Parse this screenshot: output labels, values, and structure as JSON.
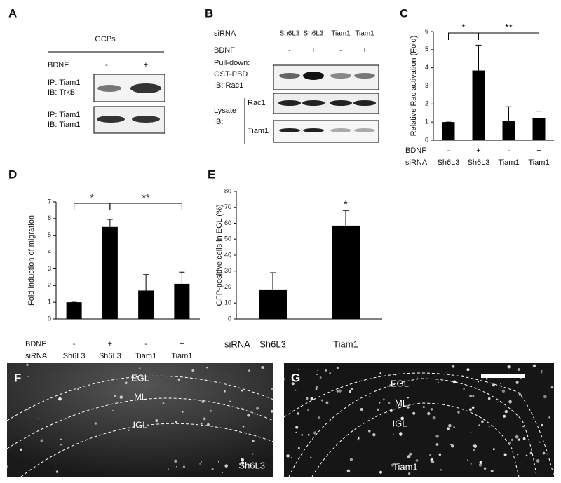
{
  "panel_letters": [
    "A",
    "B",
    "C",
    "D",
    "E",
    "F",
    "G"
  ],
  "panel_a": {
    "title": "GCPs",
    "row_label": "BDNF",
    "conditions": [
      "-",
      "+"
    ],
    "blots": [
      [
        "IP: Tiam1",
        "IB: TrkB"
      ],
      [
        "IP: Tiam1",
        "IB: Tiam1"
      ]
    ]
  },
  "panel_b": {
    "sirna_label": "siRNA",
    "sirna": [
      "Sh6L3",
      "Sh6L3",
      "Tiam1",
      "Tiam1"
    ],
    "bdnf_label": "BDNF",
    "bdnf": [
      "-",
      "+",
      "-",
      "+"
    ],
    "pulldown_label": [
      "Pull-down:",
      "GST-PBD",
      "IB: Rac1"
    ],
    "lysate_label": [
      "Lysate",
      "IB:"
    ],
    "lysate_blots": [
      "Rac1",
      "Tiam1"
    ]
  },
  "chart_data": [
    {
      "type": "bar",
      "y_label": "Relative Rac activation (Fold)",
      "category_rows": [
        {
          "name": "BDNF",
          "labels": [
            "-",
            "+",
            "-",
            "+"
          ]
        },
        {
          "name": "siRNA",
          "labels": [
            "Sh6L3",
            "Sh6L3",
            "Tiam1",
            "Tiam1"
          ]
        }
      ],
      "values": [
        1,
        3.85,
        1.05,
        1.2
      ],
      "errors": [
        0,
        1.4,
        0.8,
        0.4
      ],
      "color": "#000000",
      "ylim": [
        0,
        6
      ],
      "yticks": [
        0,
        1,
        2,
        3,
        4,
        5,
        6
      ],
      "significance": [
        {
          "from": 0,
          "to": 1,
          "label": "*"
        },
        {
          "from": 1,
          "to": 3,
          "label": "**"
        }
      ]
    },
    {
      "type": "bar",
      "y_label": "Fold induction of migration",
      "category_rows": [
        {
          "name": "BDNF",
          "labels": [
            "-",
            "+",
            "-",
            "+"
          ]
        },
        {
          "name": "siRNA",
          "labels": [
            "Sh6L3",
            "Sh6L3",
            "Tiam1",
            "Tiam1"
          ]
        }
      ],
      "values": [
        1,
        5.5,
        1.7,
        2.1
      ],
      "errors": [
        0,
        0.45,
        0.95,
        0.7
      ],
      "color": "#000000",
      "ylim": [
        0,
        7
      ],
      "yticks": [
        0,
        1,
        2,
        3,
        4,
        5,
        6,
        7
      ],
      "significance": [
        {
          "from": 0,
          "to": 1,
          "label": "*"
        },
        {
          "from": 1,
          "to": 3,
          "label": "**"
        }
      ]
    },
    {
      "type": "bar",
      "y_label": "GFP-positive cells in EGL (%)",
      "category_rows": [
        {
          "name": "siRNA",
          "labels": [
            "Sh6L3",
            "Tiam1"
          ]
        }
      ],
      "values": [
        18.5,
        58.5
      ],
      "errors": [
        10.5,
        9.5
      ],
      "color": "#000000",
      "ylim": [
        0,
        80
      ],
      "yticks": [
        0,
        10,
        20,
        30,
        40,
        50,
        60,
        70,
        80
      ],
      "significance": [
        {
          "from": 1,
          "to": 1,
          "label": "*"
        }
      ]
    }
  ],
  "images": [
    {
      "layers": [
        "EGL",
        "ML",
        "IGL"
      ],
      "condition": "Sh6L3"
    },
    {
      "layers": [
        "EGL",
        "ML",
        "IGL"
      ],
      "condition": "Tiam1"
    }
  ]
}
